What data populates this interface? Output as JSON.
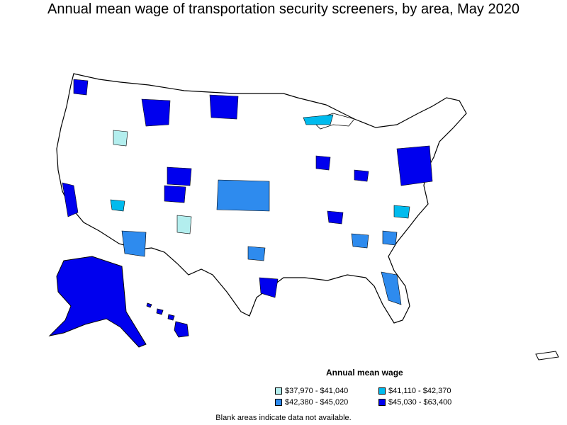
{
  "title": "Annual mean wage of transportation security screeners, by area, May 2020",
  "legend": {
    "title": "Annual mean wage",
    "items": [
      {
        "label": "$37,970 - $41,040",
        "color": "#b3eeee"
      },
      {
        "label": "$41,110 - $42,370",
        "color": "#00bbee"
      },
      {
        "label": "$42,380 - $45,020",
        "color": "#2e8bee"
      },
      {
        "label": "$45,030 - $63,400",
        "color": "#0000ee"
      }
    ]
  },
  "note": "Blank areas indicate data not available."
}
